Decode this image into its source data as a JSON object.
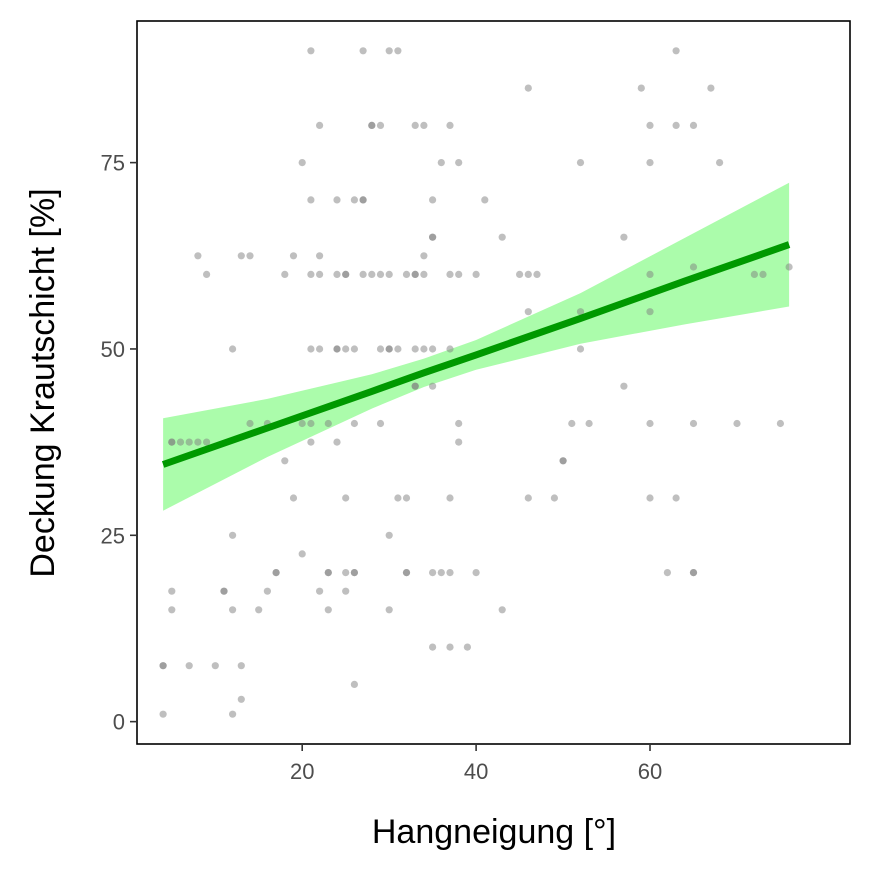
{
  "chart_data": {
    "type": "scatter",
    "title": "",
    "xlabel": "Hangneigung [°]",
    "ylabel": "Deckung Krautschicht [%]",
    "xlim": [
      1,
      83
    ],
    "ylim": [
      -3,
      94
    ],
    "x_ticks": [
      20,
      40,
      60
    ],
    "y_ticks": [
      0,
      25,
      50,
      75
    ],
    "grid": false,
    "colors": {
      "points": "#808080",
      "fit_line": "#009900",
      "confidence_band": "#a6fca6",
      "axis": "#000000",
      "tick_label": "#4d4d4d"
    },
    "points": [
      {
        "x": 4,
        "y": 1
      },
      {
        "x": 4,
        "y": 7.5
      },
      {
        "x": 4,
        "y": 7.5
      },
      {
        "x": 5,
        "y": 15
      },
      {
        "x": 5,
        "y": 17.5
      },
      {
        "x": 5,
        "y": 37.5
      },
      {
        "x": 5,
        "y": 37.5
      },
      {
        "x": 6,
        "y": 37.5
      },
      {
        "x": 7,
        "y": 37.5
      },
      {
        "x": 7,
        "y": 7.5
      },
      {
        "x": 8,
        "y": 37.5
      },
      {
        "x": 8,
        "y": 62.5
      },
      {
        "x": 9,
        "y": 37.5
      },
      {
        "x": 9,
        "y": 60
      },
      {
        "x": 10,
        "y": 7.5
      },
      {
        "x": 11,
        "y": 17.5
      },
      {
        "x": 11,
        "y": 17.5
      },
      {
        "x": 12,
        "y": 1
      },
      {
        "x": 12,
        "y": 15
      },
      {
        "x": 12,
        "y": 25
      },
      {
        "x": 12,
        "y": 50
      },
      {
        "x": 13,
        "y": 3
      },
      {
        "x": 13,
        "y": 7.5
      },
      {
        "x": 13,
        "y": 62.5
      },
      {
        "x": 14,
        "y": 40
      },
      {
        "x": 14,
        "y": 62.5
      },
      {
        "x": 15,
        "y": 15
      },
      {
        "x": 16,
        "y": 17.5
      },
      {
        "x": 16,
        "y": 40
      },
      {
        "x": 17,
        "y": 20
      },
      {
        "x": 17,
        "y": 20
      },
      {
        "x": 18,
        "y": 35
      },
      {
        "x": 18,
        "y": 60
      },
      {
        "x": 19,
        "y": 30
      },
      {
        "x": 19,
        "y": 62.5
      },
      {
        "x": 20,
        "y": 22.5
      },
      {
        "x": 20,
        "y": 40
      },
      {
        "x": 20,
        "y": 75
      },
      {
        "x": 21,
        "y": 37.5
      },
      {
        "x": 21,
        "y": 40
      },
      {
        "x": 21,
        "y": 50
      },
      {
        "x": 21,
        "y": 60
      },
      {
        "x": 21,
        "y": 70
      },
      {
        "x": 21,
        "y": 90
      },
      {
        "x": 22,
        "y": 17.5
      },
      {
        "x": 22,
        "y": 50
      },
      {
        "x": 22,
        "y": 60
      },
      {
        "x": 22,
        "y": 62.5
      },
      {
        "x": 22,
        "y": 80
      },
      {
        "x": 23,
        "y": 15
      },
      {
        "x": 23,
        "y": 20
      },
      {
        "x": 23,
        "y": 20
      },
      {
        "x": 23,
        "y": 40
      },
      {
        "x": 24,
        "y": 37.5
      },
      {
        "x": 24,
        "y": 50
      },
      {
        "x": 24,
        "y": 50
      },
      {
        "x": 24,
        "y": 60
      },
      {
        "x": 24,
        "y": 70
      },
      {
        "x": 25,
        "y": 17.5
      },
      {
        "x": 25,
        "y": 20
      },
      {
        "x": 25,
        "y": 30
      },
      {
        "x": 25,
        "y": 50
      },
      {
        "x": 25,
        "y": 60
      },
      {
        "x": 25,
        "y": 60
      },
      {
        "x": 26,
        "y": 5
      },
      {
        "x": 26,
        "y": 20
      },
      {
        "x": 26,
        "y": 20
      },
      {
        "x": 26,
        "y": 40
      },
      {
        "x": 26,
        "y": 50
      },
      {
        "x": 26,
        "y": 70
      },
      {
        "x": 27,
        "y": 60
      },
      {
        "x": 27,
        "y": 70
      },
      {
        "x": 27,
        "y": 70
      },
      {
        "x": 27,
        "y": 90
      },
      {
        "x": 28,
        "y": 60
      },
      {
        "x": 28,
        "y": 80
      },
      {
        "x": 28,
        "y": 80
      },
      {
        "x": 29,
        "y": 40
      },
      {
        "x": 29,
        "y": 50
      },
      {
        "x": 29,
        "y": 60
      },
      {
        "x": 29,
        "y": 80
      },
      {
        "x": 30,
        "y": 15
      },
      {
        "x": 30,
        "y": 25
      },
      {
        "x": 30,
        "y": 50
      },
      {
        "x": 30,
        "y": 50
      },
      {
        "x": 30,
        "y": 60
      },
      {
        "x": 30,
        "y": 90
      },
      {
        "x": 31,
        "y": 30
      },
      {
        "x": 31,
        "y": 50
      },
      {
        "x": 31,
        "y": 90
      },
      {
        "x": 32,
        "y": 20
      },
      {
        "x": 32,
        "y": 20
      },
      {
        "x": 32,
        "y": 30
      },
      {
        "x": 32,
        "y": 60
      },
      {
        "x": 33,
        "y": 45
      },
      {
        "x": 33,
        "y": 45
      },
      {
        "x": 33,
        "y": 50
      },
      {
        "x": 33,
        "y": 60
      },
      {
        "x": 33,
        "y": 60
      },
      {
        "x": 33,
        "y": 80
      },
      {
        "x": 34,
        "y": 50
      },
      {
        "x": 34,
        "y": 60
      },
      {
        "x": 34,
        "y": 62.5
      },
      {
        "x": 34,
        "y": 80
      },
      {
        "x": 35,
        "y": 10
      },
      {
        "x": 35,
        "y": 20
      },
      {
        "x": 35,
        "y": 45
      },
      {
        "x": 35,
        "y": 50
      },
      {
        "x": 35,
        "y": 65
      },
      {
        "x": 35,
        "y": 65
      },
      {
        "x": 35,
        "y": 70
      },
      {
        "x": 36,
        "y": 20
      },
      {
        "x": 36,
        "y": 75
      },
      {
        "x": 37,
        "y": 10
      },
      {
        "x": 37,
        "y": 20
      },
      {
        "x": 37,
        "y": 30
      },
      {
        "x": 37,
        "y": 50
      },
      {
        "x": 37,
        "y": 60
      },
      {
        "x": 37,
        "y": 80
      },
      {
        "x": 38,
        "y": 37.5
      },
      {
        "x": 38,
        "y": 40
      },
      {
        "x": 38,
        "y": 60
      },
      {
        "x": 38,
        "y": 75
      },
      {
        "x": 39,
        "y": 10
      },
      {
        "x": 40,
        "y": 20
      },
      {
        "x": 40,
        "y": 60
      },
      {
        "x": 41,
        "y": 70
      },
      {
        "x": 43,
        "y": 15
      },
      {
        "x": 43,
        "y": 65
      },
      {
        "x": 45,
        "y": 60
      },
      {
        "x": 46,
        "y": 30
      },
      {
        "x": 46,
        "y": 55
      },
      {
        "x": 46,
        "y": 60
      },
      {
        "x": 46,
        "y": 85
      },
      {
        "x": 47,
        "y": 60
      },
      {
        "x": 49,
        "y": 30
      },
      {
        "x": 50,
        "y": 35
      },
      {
        "x": 50,
        "y": 35
      },
      {
        "x": 51,
        "y": 40
      },
      {
        "x": 52,
        "y": 50
      },
      {
        "x": 52,
        "y": 55
      },
      {
        "x": 52,
        "y": 75
      },
      {
        "x": 53,
        "y": 40
      },
      {
        "x": 57,
        "y": 45
      },
      {
        "x": 57,
        "y": 65
      },
      {
        "x": 59,
        "y": 85
      },
      {
        "x": 60,
        "y": 30
      },
      {
        "x": 60,
        "y": 40
      },
      {
        "x": 60,
        "y": 55
      },
      {
        "x": 60,
        "y": 60
      },
      {
        "x": 60,
        "y": 75
      },
      {
        "x": 60,
        "y": 80
      },
      {
        "x": 62,
        "y": 20
      },
      {
        "x": 63,
        "y": 30
      },
      {
        "x": 63,
        "y": 80
      },
      {
        "x": 63,
        "y": 90
      },
      {
        "x": 65,
        "y": 20
      },
      {
        "x": 65,
        "y": 20
      },
      {
        "x": 65,
        "y": 40
      },
      {
        "x": 65,
        "y": 61
      },
      {
        "x": 65,
        "y": 80
      },
      {
        "x": 67,
        "y": 85
      },
      {
        "x": 68,
        "y": 75
      },
      {
        "x": 70,
        "y": 40
      },
      {
        "x": 72,
        "y": 60
      },
      {
        "x": 73,
        "y": 60
      },
      {
        "x": 75,
        "y": 40
      },
      {
        "x": 76,
        "y": 61
      }
    ],
    "fit": {
      "x": [
        4,
        16,
        28,
        34,
        40,
        52,
        64,
        76
      ],
      "y": [
        34.5,
        39.4,
        44.3,
        46.8,
        49.2,
        54.1,
        59.1,
        64.0
      ],
      "lower": [
        28.3,
        35.5,
        42.0,
        44.9,
        47.2,
        50.7,
        53.3,
        55.7
      ],
      "upper": [
        40.7,
        43.3,
        46.6,
        48.7,
        51.2,
        57.5,
        64.9,
        72.3
      ]
    }
  }
}
